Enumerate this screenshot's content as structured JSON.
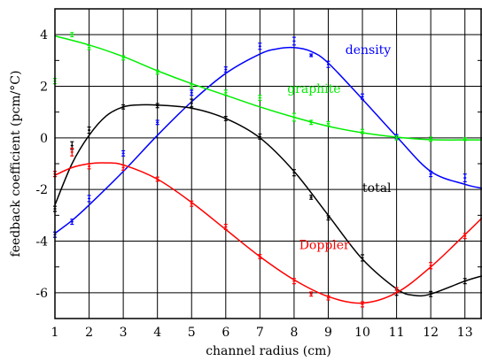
{
  "chart_data": {
    "type": "line",
    "xlabel": "channel radius (cm)",
    "ylabel": "feedback coefficient (pcm/°C)",
    "xlim": [
      1,
      13.5
    ],
    "ylim": [
      -7,
      5
    ],
    "xticks": [
      1,
      2,
      3,
      4,
      5,
      6,
      7,
      8,
      9,
      10,
      11,
      12,
      13
    ],
    "yticks": [
      -6,
      -4,
      -2,
      0,
      2,
      4
    ],
    "grid": true,
    "legend": "inline labels",
    "series": [
      {
        "name": "density",
        "color": "#0000ff",
        "points": [
          [
            1,
            -3.75
          ],
          [
            1.5,
            -3.25
          ],
          [
            2,
            -2.35
          ],
          [
            3,
            -0.6
          ],
          [
            4,
            0.6
          ],
          [
            5,
            1.75
          ],
          [
            6,
            2.65
          ],
          [
            7,
            3.55
          ],
          [
            8,
            3.75
          ],
          [
            8.5,
            3.2
          ],
          [
            9,
            2.85
          ],
          [
            10,
            1.6
          ],
          [
            11,
            0.05
          ],
          [
            12,
            -1.4
          ],
          [
            13,
            -1.55
          ]
        ],
        "errors": [
          0.1,
          0.1,
          0.12,
          0.1,
          0.08,
          0.1,
          0.1,
          0.12,
          0.15,
          0.05,
          0.12,
          0.1,
          0.08,
          0.1,
          0.15
        ],
        "curve": [
          [
            1,
            -3.7
          ],
          [
            1.5,
            -3.2
          ],
          [
            2,
            -2.6
          ],
          [
            3,
            -1.3
          ],
          [
            4,
            0.1
          ],
          [
            5,
            1.4
          ],
          [
            6,
            2.5
          ],
          [
            7,
            3.25
          ],
          [
            7.5,
            3.45
          ],
          [
            8,
            3.5
          ],
          [
            8.5,
            3.35
          ],
          [
            9,
            2.9
          ],
          [
            10,
            1.5
          ],
          [
            11,
            0.05
          ],
          [
            12,
            -1.3
          ],
          [
            13,
            -1.8
          ],
          [
            13.5,
            -1.95
          ]
        ]
      },
      {
        "name": "graphite",
        "color": "#00ee00",
        "points": [
          [
            1,
            2.2
          ],
          [
            1.5,
            4.0
          ],
          [
            2,
            3.5
          ],
          [
            3,
            3.1
          ],
          [
            4,
            2.55
          ],
          [
            5,
            2.0
          ],
          [
            6,
            1.75
          ],
          [
            7,
            1.55
          ],
          [
            8,
            0.8
          ],
          [
            8.5,
            0.6
          ],
          [
            9,
            0.55
          ],
          [
            10,
            0.25
          ],
          [
            11,
            0.0
          ],
          [
            12,
            -0.05
          ],
          [
            13,
            -0.05
          ]
        ],
        "errors": [
          0.1,
          0.08,
          0.08,
          0.08,
          0.08,
          0.08,
          0.1,
          0.1,
          0.15,
          0.08,
          0.08,
          0.08,
          0.08,
          0.08,
          0.05
        ],
        "curve": [
          [
            1,
            3.95
          ],
          [
            2,
            3.6
          ],
          [
            3,
            3.15
          ],
          [
            4,
            2.6
          ],
          [
            5,
            2.1
          ],
          [
            6,
            1.65
          ],
          [
            7,
            1.2
          ],
          [
            8,
            0.8
          ],
          [
            9,
            0.45
          ],
          [
            10,
            0.2
          ],
          [
            11,
            0.03
          ],
          [
            12,
            -0.07
          ],
          [
            13,
            -0.08
          ],
          [
            13.5,
            -0.08
          ]
        ]
      },
      {
        "name": "total",
        "color": "#000000",
        "points": [
          [
            1,
            -2.75
          ],
          [
            1.5,
            -0.3
          ],
          [
            2,
            0.3
          ],
          [
            3,
            1.2
          ],
          [
            4,
            1.25
          ],
          [
            5,
            1.35
          ],
          [
            6,
            0.75
          ],
          [
            7,
            0.05
          ],
          [
            8,
            -1.35
          ],
          [
            8.5,
            -2.3
          ],
          [
            9,
            -3.1
          ],
          [
            10,
            -4.65
          ],
          [
            11,
            -6.0
          ],
          [
            12,
            -6.05
          ],
          [
            13,
            -5.55
          ]
        ],
        "errors": [
          0.1,
          0.15,
          0.12,
          0.08,
          0.08,
          0.15,
          0.08,
          0.1,
          0.12,
          0.08,
          0.08,
          0.12,
          0.1,
          0.1,
          0.1
        ],
        "curve": [
          [
            1,
            -2.6
          ],
          [
            1.5,
            -1.0
          ],
          [
            2,
            0.1
          ],
          [
            2.5,
            0.85
          ],
          [
            3,
            1.2
          ],
          [
            3.5,
            1.28
          ],
          [
            4,
            1.27
          ],
          [
            5,
            1.15
          ],
          [
            6,
            0.75
          ],
          [
            7,
            0.0
          ],
          [
            8,
            -1.3
          ],
          [
            9,
            -3.0
          ],
          [
            10,
            -4.7
          ],
          [
            11,
            -5.85
          ],
          [
            11.5,
            -6.1
          ],
          [
            12,
            -6.05
          ],
          [
            13,
            -5.55
          ],
          [
            13.5,
            -5.35
          ]
        ]
      },
      {
        "name": "Doppler",
        "color": "#ff0000",
        "points": [
          [
            1,
            -1.4
          ],
          [
            1.5,
            -0.55
          ],
          [
            2,
            -1.1
          ],
          [
            3,
            -1.15
          ],
          [
            4,
            -1.6
          ],
          [
            5,
            -2.55
          ],
          [
            6,
            -3.45
          ],
          [
            7,
            -4.6
          ],
          [
            8,
            -5.55
          ],
          [
            8.5,
            -6.05
          ],
          [
            9,
            -6.2
          ],
          [
            10,
            -6.45
          ],
          [
            11,
            -5.9
          ],
          [
            12,
            -4.95
          ],
          [
            13,
            -3.8
          ]
        ],
        "errors": [
          0.1,
          0.15,
          0.1,
          0.1,
          0.08,
          0.1,
          0.1,
          0.08,
          0.1,
          0.08,
          0.08,
          0.1,
          0.1,
          0.12,
          0.1
        ],
        "curve": [
          [
            1,
            -1.45
          ],
          [
            1.5,
            -1.15
          ],
          [
            2,
            -1.0
          ],
          [
            2.5,
            -0.97
          ],
          [
            3,
            -1.05
          ],
          [
            4,
            -1.6
          ],
          [
            5,
            -2.5
          ],
          [
            6,
            -3.55
          ],
          [
            7,
            -4.6
          ],
          [
            8,
            -5.5
          ],
          [
            9,
            -6.15
          ],
          [
            10,
            -6.4
          ],
          [
            11,
            -6.0
          ],
          [
            12,
            -5.0
          ],
          [
            13,
            -3.75
          ],
          [
            13.5,
            -3.1
          ]
        ]
      }
    ],
    "labels": [
      {
        "text": "density",
        "x": 9.5,
        "y": 3.25,
        "color": "#0000ff"
      },
      {
        "text": "graphite",
        "x": 7.8,
        "y": 1.75,
        "color": "#00ee00"
      },
      {
        "text": "total",
        "x": 10.0,
        "y": -2.1,
        "color": "#000000"
      },
      {
        "text": "Doppler",
        "x": 8.15,
        "y": -4.3,
        "color": "#ff0000"
      }
    ]
  }
}
